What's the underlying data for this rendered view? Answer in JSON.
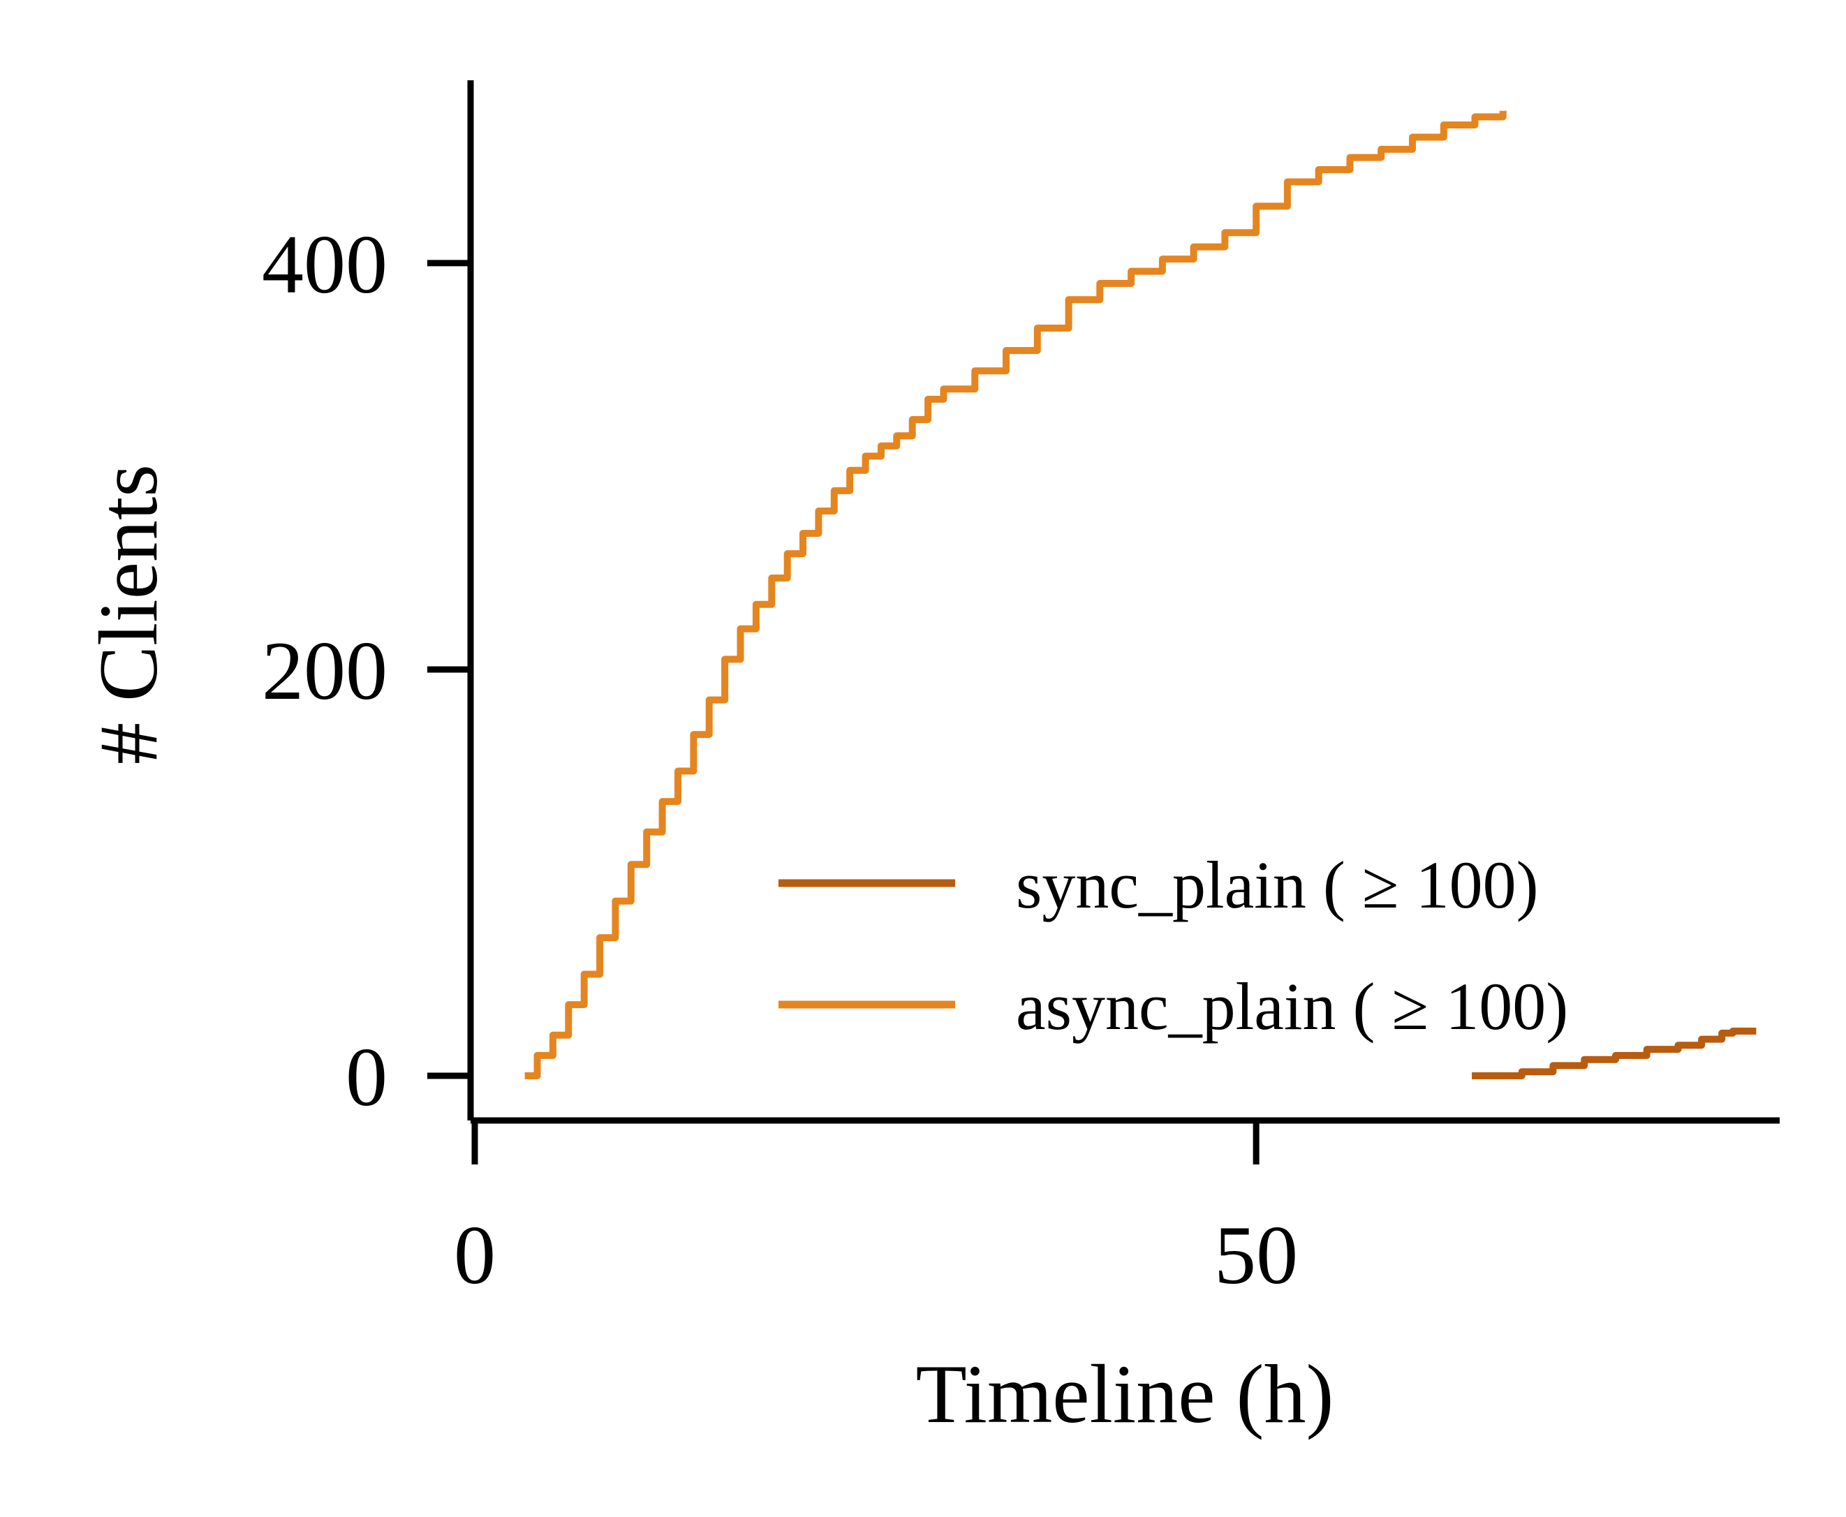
{
  "chart_data": {
    "type": "line",
    "title": "",
    "xlabel": "Timeline (h)",
    "ylabel": "# Clients",
    "xlim": [
      0,
      83.5
    ],
    "ylim": [
      -22,
      490
    ],
    "xticks": [
      {
        "value": 0,
        "label": "0"
      },
      {
        "value": 50,
        "label": "50"
      }
    ],
    "yticks": [
      {
        "value": 0,
        "label": "0"
      },
      {
        "value": 200,
        "label": "200"
      },
      {
        "value": 400,
        "label": "400"
      }
    ],
    "grid": false,
    "legend_position": "lower-right",
    "series": [
      {
        "name": "sync_plain ( ≥ 100)",
        "color": "#b85c0f",
        "x": [
          63.8,
          66.2,
          67.0,
          69.0,
          71.0,
          73.0,
          75.0,
          77.0,
          78.5,
          79.8,
          80.5,
          82.0
        ],
        "y": [
          0,
          0,
          2,
          5,
          8,
          10,
          13,
          15,
          18,
          21,
          22,
          22
        ]
      },
      {
        "name": "async_plain ( ≥ 100)",
        "color": "#e58520",
        "x": [
          3.2,
          4.0,
          5.0,
          6.0,
          7.0,
          8.0,
          9.0,
          10.0,
          11.0,
          12.0,
          13.0,
          14.0,
          15.0,
          16.0,
          17.0,
          18.0,
          19.0,
          20.0,
          21.0,
          22.0,
          23.0,
          24.0,
          25.0,
          26.0,
          27.0,
          28.0,
          29.0,
          30.0,
          32.0,
          34.0,
          36.0,
          38.0,
          40.0,
          42.0,
          44.0,
          46.0,
          48.0,
          50.0,
          52.0,
          54.0,
          56.0,
          58.0,
          60.0,
          62.0,
          64.0,
          65.8
        ],
        "y": [
          0,
          10,
          20,
          35,
          50,
          68,
          86,
          104,
          120,
          135,
          150,
          168,
          185,
          205,
          220,
          232,
          245,
          257,
          267,
          278,
          288,
          298,
          305,
          310,
          315,
          323,
          333,
          338,
          347,
          357,
          368,
          382,
          390,
          396,
          402,
          408,
          415,
          428,
          440,
          446,
          452,
          456,
          462,
          468,
          472,
          475
        ]
      }
    ]
  }
}
